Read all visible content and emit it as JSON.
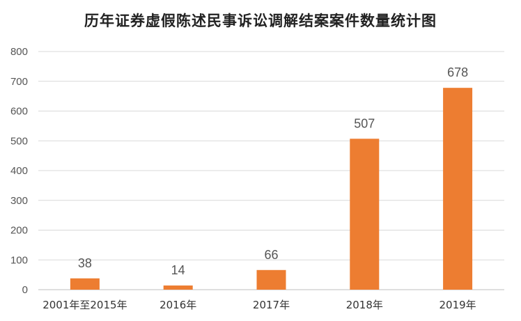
{
  "chart_data": {
    "type": "bar",
    "title": "历年证券虚假陈述民事诉讼调解结案案件数量统计图",
    "xlabel": "",
    "ylabel": "",
    "categories": [
      "2001年至2015年",
      "2016年",
      "2017年",
      "2018年",
      "2019年"
    ],
    "values": [
      38,
      14,
      66,
      507,
      678
    ],
    "data_labels": [
      "38",
      "14",
      "66",
      "507",
      "678"
    ],
    "ylim": [
      0,
      800
    ],
    "yticks": [
      0,
      100,
      200,
      300,
      400,
      500,
      600,
      700,
      800
    ],
    "grid": true,
    "legend": "none",
    "bar_color": "#ED7D31"
  }
}
